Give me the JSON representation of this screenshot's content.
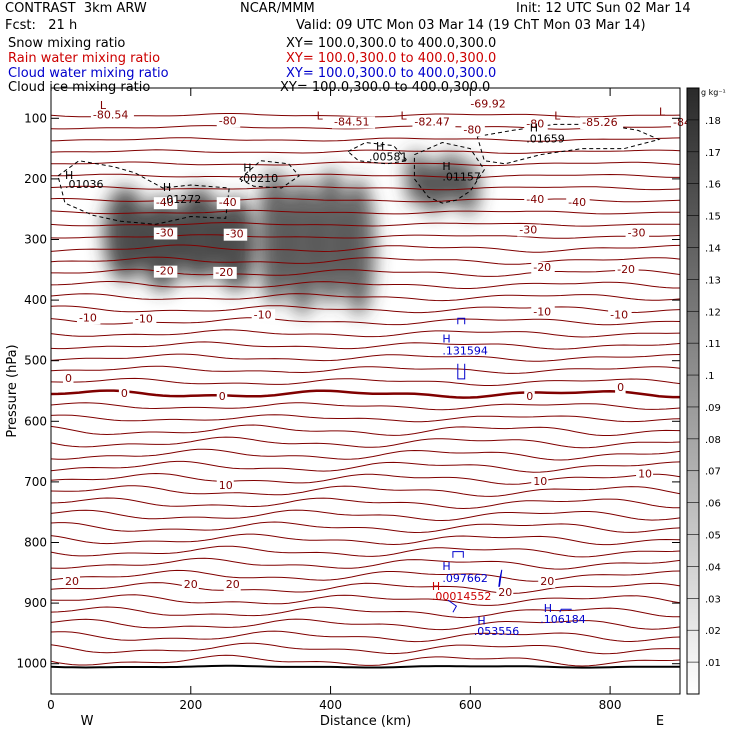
{
  "header": {
    "title_left": "CONTRAST  3km ARW",
    "fcst": "Fcst:   21 h",
    "center": "NCAR/MMM",
    "init": "Init: 12 UTC Sun 02 Mar 14",
    "valid": "Valid: 09 UTC Mon 03 Mar 14 (19 ChT Mon 03 Mar 14)"
  },
  "legend": [
    {
      "label": "Snow mixing ratio",
      "xy": "XY= 100.0,300.0 to 400.0,300.0",
      "color": "#000000"
    },
    {
      "label": "Rain water mixing ratio",
      "xy": "XY= 100.0,300.0 to 400.0,300.0",
      "color": "#cc0000"
    },
    {
      "label": "Cloud water mixing ratio",
      "xy": "XY= 100.0,300.0 to 400.0,300.0",
      "color": "#0000cc"
    },
    {
      "label": "Cloud ice mixing ratio",
      "xy": "XY= 100.0,300.0 to 400.0,300.0",
      "color": "#000000"
    }
  ],
  "chart_data": {
    "type": "contour",
    "xlabel": "Distance (km)",
    "ylabel": "Pressure (hPa)",
    "xlim": [
      0,
      900
    ],
    "ylim": [
      1050,
      50
    ],
    "xticks": [
      0,
      200,
      400,
      600,
      800
    ],
    "yticks": [
      100,
      200,
      300,
      400,
      500,
      600,
      700,
      800,
      900,
      1000
    ],
    "x_end_labels": {
      "left": "W",
      "right": "E"
    },
    "colorbar": {
      "unit": "g kg⁻¹",
      "ticks": [
        ".01",
        ".02",
        ".03",
        ".04",
        ".05",
        ".06",
        ".07",
        ".08",
        ".09",
        ".1",
        ".11",
        ".12",
        ".13",
        ".14",
        ".15",
        ".16",
        ".17",
        ".18"
      ]
    },
    "temperature_color": "#800000",
    "snow_cells": [
      {
        "x0": 80,
        "x1": 290,
        "p_top": 220,
        "p_bot": 375,
        "intensity": 0.9
      },
      {
        "x0": 300,
        "x1": 460,
        "p_top": 190,
        "p_bot": 415,
        "intensity": 0.8
      },
      {
        "x0": 510,
        "x1": 610,
        "p_top": 160,
        "p_bot": 250,
        "intensity": 0.85
      }
    ],
    "contour_labels": [
      {
        "x": 60,
        "p": 100,
        "text": "-80.54",
        "type": "temp"
      },
      {
        "x": 240,
        "p": 110,
        "text": "-80",
        "type": "temp"
      },
      {
        "x": 405,
        "p": 112,
        "text": "-84.51",
        "type": "temp"
      },
      {
        "x": 520,
        "p": 112,
        "text": "-82.47",
        "type": "temp"
      },
      {
        "x": 600,
        "p": 82,
        "text": "-69.92",
        "type": "temp"
      },
      {
        "x": 590,
        "p": 125,
        "text": "-80",
        "type": "temp"
      },
      {
        "x": 680,
        "p": 115,
        "text": "-80",
        "type": "temp"
      },
      {
        "x": 760,
        "p": 113,
        "text": "-85.26",
        "type": "temp"
      },
      {
        "x": 890,
        "p": 113,
        "text": "-84",
        "type": "temp"
      },
      {
        "x": 150,
        "p": 245,
        "text": "-40",
        "type": "temp"
      },
      {
        "x": 240,
        "p": 245,
        "text": "-40",
        "type": "temp"
      },
      {
        "x": 680,
        "p": 240,
        "text": "-40",
        "type": "temp"
      },
      {
        "x": 740,
        "p": 245,
        "text": "-40",
        "type": "temp"
      },
      {
        "x": 150,
        "p": 295,
        "text": "-30",
        "type": "temp"
      },
      {
        "x": 250,
        "p": 297,
        "text": "-30",
        "type": "temp"
      },
      {
        "x": 670,
        "p": 290,
        "text": "-30",
        "type": "temp"
      },
      {
        "x": 825,
        "p": 295,
        "text": "-30",
        "type": "temp"
      },
      {
        "x": 150,
        "p": 358,
        "text": "-20",
        "type": "temp"
      },
      {
        "x": 235,
        "p": 360,
        "text": "-20",
        "type": "temp"
      },
      {
        "x": 690,
        "p": 352,
        "text": "-20",
        "type": "temp"
      },
      {
        "x": 810,
        "p": 355,
        "text": "-20",
        "type": "temp"
      },
      {
        "x": 40,
        "p": 435,
        "text": "-10",
        "type": "temp"
      },
      {
        "x": 120,
        "p": 437,
        "text": "-10",
        "type": "temp"
      },
      {
        "x": 290,
        "p": 430,
        "text": "-10",
        "type": "temp"
      },
      {
        "x": 690,
        "p": 425,
        "text": "-10",
        "type": "temp"
      },
      {
        "x": 800,
        "p": 430,
        "text": "-10",
        "type": "temp"
      },
      {
        "x": 20,
        "p": 535,
        "text": "0",
        "type": "temp"
      },
      {
        "x": 100,
        "p": 560,
        "text": "0",
        "type": "temp"
      },
      {
        "x": 240,
        "p": 565,
        "text": "0",
        "type": "temp"
      },
      {
        "x": 680,
        "p": 565,
        "text": "0",
        "type": "temp"
      },
      {
        "x": 810,
        "p": 550,
        "text": "0",
        "type": "temp"
      },
      {
        "x": 240,
        "p": 712,
        "text": "10",
        "type": "temp"
      },
      {
        "x": 690,
        "p": 705,
        "text": "10",
        "type": "temp"
      },
      {
        "x": 840,
        "p": 693,
        "text": "10",
        "type": "temp"
      },
      {
        "x": 20,
        "p": 870,
        "text": "20",
        "type": "temp"
      },
      {
        "x": 190,
        "p": 875,
        "text": "20",
        "type": "temp"
      },
      {
        "x": 250,
        "p": 875,
        "text": "20",
        "type": "temp"
      },
      {
        "x": 640,
        "p": 888,
        "text": "20",
        "type": "temp"
      },
      {
        "x": 700,
        "p": 870,
        "text": "20",
        "type": "temp"
      },
      {
        "x": 20,
        "p": 200,
        "text": "H",
        "type": "snow"
      },
      {
        "x": 20,
        "p": 215,
        "text": ".01036",
        "type": "snow"
      },
      {
        "x": 160,
        "p": 220,
        "text": "H",
        "type": "snow"
      },
      {
        "x": 160,
        "p": 240,
        "text": ".01272",
        "type": "snow"
      },
      {
        "x": 275,
        "p": 188,
        "text": "H",
        "type": "snow"
      },
      {
        "x": 270,
        "p": 205,
        "text": ".00210",
        "type": "snow"
      },
      {
        "x": 465,
        "p": 152,
        "text": "H",
        "type": "snow"
      },
      {
        "x": 455,
        "p": 170,
        "text": ".00581",
        "type": "snow"
      },
      {
        "x": 560,
        "p": 185,
        "text": "H",
        "type": "snow"
      },
      {
        "x": 560,
        "p": 203,
        "text": ".01157",
        "type": "snow"
      },
      {
        "x": 685,
        "p": 122,
        "text": "H",
        "type": "snow"
      },
      {
        "x": 680,
        "p": 140,
        "text": ".01659",
        "type": "snow"
      },
      {
        "x": 70,
        "p": 85,
        "text": "L",
        "type": "low"
      },
      {
        "x": 380,
        "p": 102,
        "text": "L",
        "type": "low"
      },
      {
        "x": 500,
        "p": 102,
        "text": "L",
        "type": "low"
      },
      {
        "x": 720,
        "p": 102,
        "text": "L",
        "type": "low"
      },
      {
        "x": 870,
        "p": 95,
        "text": "L",
        "type": "low"
      },
      {
        "x": 560,
        "p": 470,
        "text": "H",
        "type": "cloud"
      },
      {
        "x": 560,
        "p": 490,
        "text": ".131594",
        "type": "cloud"
      },
      {
        "x": 560,
        "p": 845,
        "text": "H",
        "type": "cloud"
      },
      {
        "x": 560,
        "p": 865,
        "text": ".097662",
        "type": "cloud"
      },
      {
        "x": 545,
        "p": 878,
        "text": "H",
        "type": "rain"
      },
      {
        "x": 545,
        "p": 895,
        "text": ".00014552",
        "type": "rain"
      },
      {
        "x": 610,
        "p": 935,
        "text": "H",
        "type": "cloud"
      },
      {
        "x": 605,
        "p": 953,
        "text": ".053556",
        "type": "cloud"
      },
      {
        "x": 705,
        "p": 915,
        "text": "H",
        "type": "cloud"
      },
      {
        "x": 700,
        "p": 933,
        "text": ".106184",
        "type": "cloud"
      }
    ]
  }
}
